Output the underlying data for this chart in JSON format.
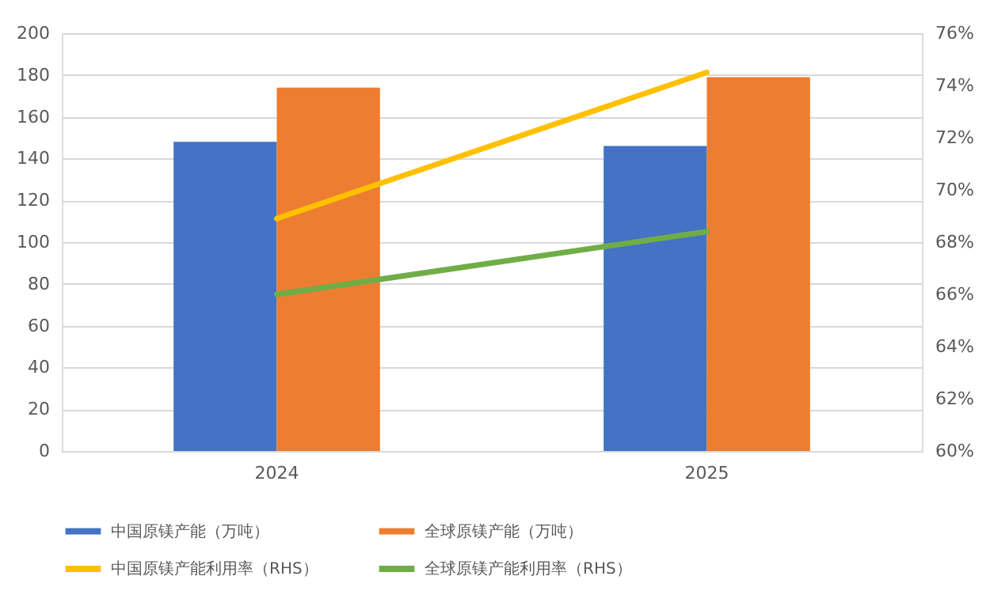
{
  "chart_data": {
    "type": "bar",
    "categories": [
      "2024",
      "2025"
    ],
    "series": [
      {
        "name": "中国原镁产能（万吨）",
        "color": "#4472c4",
        "values": [
          148,
          146
        ]
      },
      {
        "name": "全球原镁产能（万吨）",
        "color": "#ed7d31",
        "values": [
          174,
          179
        ]
      },
      {
        "name": "中国原镁产能利用率（RHS）",
        "color": "#ffc000",
        "type": "line",
        "axis": "y2",
        "values": [
          68.9,
          74.5
        ]
      },
      {
        "name": "全球原镁产能利用率（RHS）",
        "color": "#70ad47",
        "type": "line",
        "axis": "y2",
        "values": [
          66,
          68.4
        ]
      }
    ],
    "ylim": [
      0,
      200
    ],
    "yticks": [
      0,
      20,
      40,
      60,
      80,
      100,
      120,
      140,
      160,
      180,
      200
    ],
    "y2lim": [
      60,
      76
    ],
    "y2ticks": [
      {
        "value": 60,
        "label": "60%"
      },
      {
        "value": 62,
        "label": "62%"
      },
      {
        "value": 64,
        "label": "64%"
      },
      {
        "value": 66,
        "label": "66%"
      },
      {
        "value": 68,
        "label": "68%"
      },
      {
        "value": 70,
        "label": "70%"
      },
      {
        "value": 72,
        "label": "72%"
      },
      {
        "value": 74,
        "label": "74%"
      },
      {
        "value": 76,
        "label": "76%"
      }
    ],
    "grid": "y",
    "legend": "bottom",
    "line_style": "solid"
  }
}
